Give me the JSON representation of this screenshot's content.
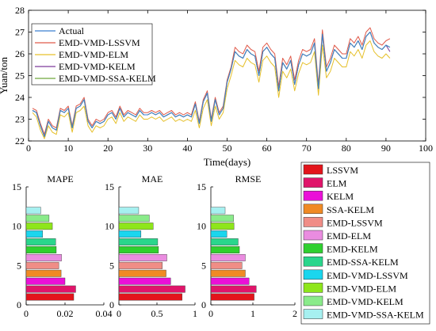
{
  "line_chart": {
    "xlabel": "Time(days)",
    "ylabel": "Yuan/ton",
    "xticks": [
      0,
      10,
      20,
      30,
      40,
      50,
      60,
      70,
      80,
      90,
      100
    ],
    "yticks": [
      22,
      23,
      24,
      25,
      26,
      27,
      28
    ],
    "legend": [
      "Actual",
      "EMD-VMD-LSSVM",
      "EMD-VMD-ELM",
      "EMD-VMD-KELM",
      "EMD-VMD-SSA-KELM"
    ]
  },
  "bar_panels": [
    {
      "title": "MAPE",
      "xticks": [
        "0",
        "0.02",
        "0.04"
      ]
    },
    {
      "title": "MAE",
      "xticks": [
        "0",
        "0.5",
        "1"
      ]
    },
    {
      "title": "RMSE",
      "xticks": [
        "0",
        "1",
        "2"
      ]
    }
  ],
  "bar_legend": [
    "LSSVM",
    "ELM",
    "KELM",
    "SSA-KELM",
    "EMD-LSSVM",
    "EMD-ELM",
    "EMD-KELM",
    "EMD-SSA-KELM",
    "EMD-VMD-LSSVM",
    "EMD-VMD-ELM",
    "EMD-VMD-KELM",
    "EMD-VMD-SSA-KELM"
  ],
  "colors": {
    "actual": "#3a7fd0",
    "lssvm_line": "#e05a4a",
    "elm_line": "#e6c02a",
    "kelm_line": "#7e3a9a",
    "ssa_line": "#6fa83c",
    "bars": [
      "#e3141b",
      "#e0146a",
      "#ea10d8",
      "#f08a24",
      "#f08d86",
      "#ea8ce0",
      "#2fd02f",
      "#2ad68c",
      "#1ad6ee",
      "#8ee61a",
      "#8aeb8a",
      "#a6f0f0"
    ]
  },
  "chart_data": [
    {
      "type": "line",
      "xlabel": "Time(days)",
      "ylabel": "Yuan/ton",
      "xlim": [
        0,
        100
      ],
      "ylim": [
        22,
        28
      ],
      "x_start": 1,
      "series": [
        {
          "name": "Actual",
          "values": [
            23.4,
            23.3,
            22.7,
            22.2,
            22.9,
            22.6,
            22.5,
            23.4,
            23.3,
            23.5,
            22.6,
            23.5,
            23.6,
            23.9,
            22.9,
            22.6,
            22.9,
            22.8,
            22.9,
            23.2,
            23.3,
            23.0,
            23.5,
            23.1,
            23.3,
            23.2,
            23.1,
            23.4,
            23.2,
            23.2,
            23.3,
            23.2,
            23.3,
            23.1,
            23.2,
            23.3,
            23.1,
            23.2,
            23.1,
            23.2,
            23.1,
            23.7,
            22.8,
            23.8,
            24.2,
            22.9,
            23.9,
            23.2,
            23.5,
            24.7,
            25.3,
            26.1,
            25.9,
            25.8,
            26.2,
            26.0,
            25.9,
            25.0,
            26.1,
            26.3,
            26.0,
            25.8,
            24.3,
            25.6,
            25.3,
            25.7,
            24.6,
            25.5,
            26.0,
            25.9,
            26.0,
            26.5,
            24.4,
            26.9,
            25.2,
            25.6,
            26.2,
            26.0,
            25.8,
            25.8,
            26.5,
            26.3,
            26.6,
            26.2,
            26.8,
            27.0,
            26.5,
            26.3,
            26.2,
            26.4,
            26.3
          ]
        },
        {
          "name": "EMD-VMD-LSSVM",
          "values": [
            23.5,
            23.4,
            22.8,
            22.3,
            23.0,
            22.7,
            22.6,
            23.5,
            23.4,
            23.6,
            22.7,
            23.6,
            23.7,
            24.0,
            23.0,
            22.7,
            23.0,
            22.9,
            23.0,
            23.3,
            23.4,
            23.1,
            23.6,
            23.2,
            23.4,
            23.3,
            23.2,
            23.5,
            23.3,
            23.3,
            23.4,
            23.3,
            23.4,
            23.2,
            23.3,
            23.4,
            23.2,
            23.3,
            23.2,
            23.3,
            23.2,
            23.8,
            22.9,
            23.9,
            24.3,
            23.0,
            24.0,
            23.3,
            23.6,
            24.8,
            25.4,
            26.3,
            26.1,
            26.0,
            26.4,
            26.2,
            26.1,
            25.2,
            26.3,
            26.5,
            26.2,
            26.0,
            24.5,
            25.8,
            25.5,
            25.9,
            24.8,
            25.7,
            26.2,
            26.1,
            26.2,
            26.7,
            24.6,
            27.1,
            25.4,
            25.8,
            26.4,
            26.2,
            26.0,
            26.0,
            26.7,
            26.5,
            26.8,
            26.4,
            27.0,
            27.2,
            26.7,
            26.5,
            26.4,
            26.6,
            26.7
          ]
        },
        {
          "name": "EMD-VMD-ELM",
          "values": [
            23.3,
            23.1,
            22.5,
            22.1,
            22.7,
            22.4,
            22.3,
            23.2,
            23.1,
            23.3,
            22.4,
            23.3,
            23.4,
            23.6,
            22.7,
            22.4,
            22.7,
            22.6,
            22.7,
            23.0,
            23.1,
            22.8,
            23.3,
            22.9,
            23.1,
            23.0,
            22.9,
            23.2,
            23.0,
            23.0,
            23.1,
            23.0,
            23.1,
            22.9,
            23.0,
            23.1,
            22.9,
            23.0,
            22.9,
            23.0,
            22.9,
            23.4,
            22.6,
            23.5,
            23.9,
            22.7,
            23.6,
            23.0,
            23.3,
            24.4,
            25.0,
            25.7,
            25.5,
            25.4,
            25.8,
            25.6,
            25.5,
            24.7,
            25.7,
            25.9,
            25.6,
            25.4,
            24.0,
            25.2,
            24.9,
            25.3,
            24.3,
            25.1,
            25.6,
            25.5,
            25.6,
            26.1,
            24.1,
            26.4,
            24.9,
            25.2,
            25.8,
            25.6,
            25.4,
            25.4,
            26.1,
            25.9,
            26.2,
            25.8,
            26.4,
            26.6,
            26.1,
            25.9,
            25.8,
            26.0,
            25.8
          ]
        },
        {
          "name": "EMD-VMD-KELM",
          "values": [
            23.4,
            23.3,
            22.7,
            22.2,
            22.9,
            22.6,
            22.5,
            23.4,
            23.3,
            23.5,
            22.6,
            23.5,
            23.6,
            23.9,
            22.9,
            22.6,
            22.9,
            22.8,
            22.9,
            23.2,
            23.3,
            23.0,
            23.5,
            23.1,
            23.3,
            23.2,
            23.1,
            23.4,
            23.2,
            23.2,
            23.3,
            23.2,
            23.3,
            23.1,
            23.2,
            23.3,
            23.1,
            23.2,
            23.1,
            23.2,
            23.1,
            23.7,
            22.8,
            23.8,
            24.2,
            22.9,
            23.9,
            23.2,
            23.5,
            24.7,
            25.3,
            26.1,
            25.9,
            25.8,
            26.2,
            26.0,
            25.9,
            25.0,
            26.1,
            26.3,
            26.0,
            25.8,
            24.3,
            25.6,
            25.3,
            25.7,
            24.6,
            25.5,
            26.0,
            25.9,
            26.0,
            26.5,
            24.4,
            26.9,
            25.2,
            25.6,
            26.2,
            26.0,
            25.8,
            25.8,
            26.5,
            26.3,
            26.6,
            26.2,
            26.8,
            27.0,
            26.5,
            26.3,
            26.2,
            26.4,
            26.1
          ]
        },
        {
          "name": "EMD-VMD-SSA-KELM",
          "values": [
            23.4,
            23.3,
            22.7,
            22.2,
            22.9,
            22.6,
            22.5,
            23.4,
            23.3,
            23.5,
            22.6,
            23.5,
            23.6,
            23.9,
            22.9,
            22.6,
            22.9,
            22.8,
            22.9,
            23.2,
            23.3,
            23.0,
            23.5,
            23.1,
            23.3,
            23.2,
            23.1,
            23.4,
            23.2,
            23.2,
            23.3,
            23.2,
            23.3,
            23.1,
            23.2,
            23.3,
            23.1,
            23.2,
            23.1,
            23.2,
            23.1,
            23.7,
            22.8,
            23.8,
            24.2,
            22.9,
            23.9,
            23.2,
            23.5,
            24.7,
            25.3,
            26.1,
            25.9,
            25.8,
            26.2,
            26.0,
            25.9,
            25.0,
            26.1,
            26.3,
            26.0,
            25.8,
            24.3,
            25.6,
            25.3,
            25.7,
            24.6,
            25.5,
            26.0,
            25.9,
            26.0,
            26.5,
            24.4,
            26.9,
            25.2,
            25.6,
            26.2,
            26.0,
            25.8,
            25.8,
            26.5,
            26.3,
            26.6,
            26.2,
            26.8,
            27.0,
            26.5,
            26.3,
            26.2,
            26.4,
            26.3
          ]
        }
      ]
    },
    {
      "type": "bar",
      "orientation": "horizontal",
      "title": "MAPE",
      "xlim": [
        0,
        0.04
      ],
      "ylim": [
        0,
        15
      ],
      "categories": [
        "LSSVM",
        "ELM",
        "KELM",
        "SSA-KELM",
        "EMD-LSSVM",
        "EMD-ELM",
        "EMD-KELM",
        "EMD-SSA-KELM",
        "EMD-VMD-LSSVM",
        "EMD-VMD-ELM",
        "EMD-VMD-KELM",
        "EMD-VMD-SSA-KELM"
      ],
      "values": [
        0.0245,
        0.0255,
        0.02,
        0.018,
        0.0168,
        0.0182,
        0.0155,
        0.0152,
        0.0085,
        0.0135,
        0.0118,
        0.0075
      ]
    },
    {
      "type": "bar",
      "orientation": "horizontal",
      "title": "MAE",
      "xlim": [
        0,
        1.0
      ],
      "ylim": [
        0,
        15
      ],
      "categories": [
        "LSSVM",
        "ELM",
        "KELM",
        "SSA-KELM",
        "EMD-LSSVM",
        "EMD-ELM",
        "EMD-KELM",
        "EMD-SSA-KELM",
        "EMD-VMD-LSSVM",
        "EMD-VMD-ELM",
        "EMD-VMD-KELM",
        "EMD-VMD-SSA-KELM"
      ],
      "values": [
        0.83,
        0.87,
        0.68,
        0.62,
        0.57,
        0.63,
        0.52,
        0.51,
        0.29,
        0.45,
        0.4,
        0.26
      ]
    },
    {
      "type": "bar",
      "orientation": "horizontal",
      "title": "RMSE",
      "xlim": [
        0,
        2
      ],
      "ylim": [
        0,
        15
      ],
      "categories": [
        "LSSVM",
        "ELM",
        "KELM",
        "SSA-KELM",
        "EMD-LSSVM",
        "EMD-ELM",
        "EMD-KELM",
        "EMD-SSA-KELM",
        "EMD-VMD-LSSVM",
        "EMD-VMD-ELM",
        "EMD-VMD-KELM",
        "EMD-VMD-SSA-KELM"
      ],
      "values": [
        1.03,
        1.08,
        0.91,
        0.82,
        0.74,
        0.82,
        0.68,
        0.65,
        0.38,
        0.55,
        0.54,
        0.34
      ]
    }
  ]
}
